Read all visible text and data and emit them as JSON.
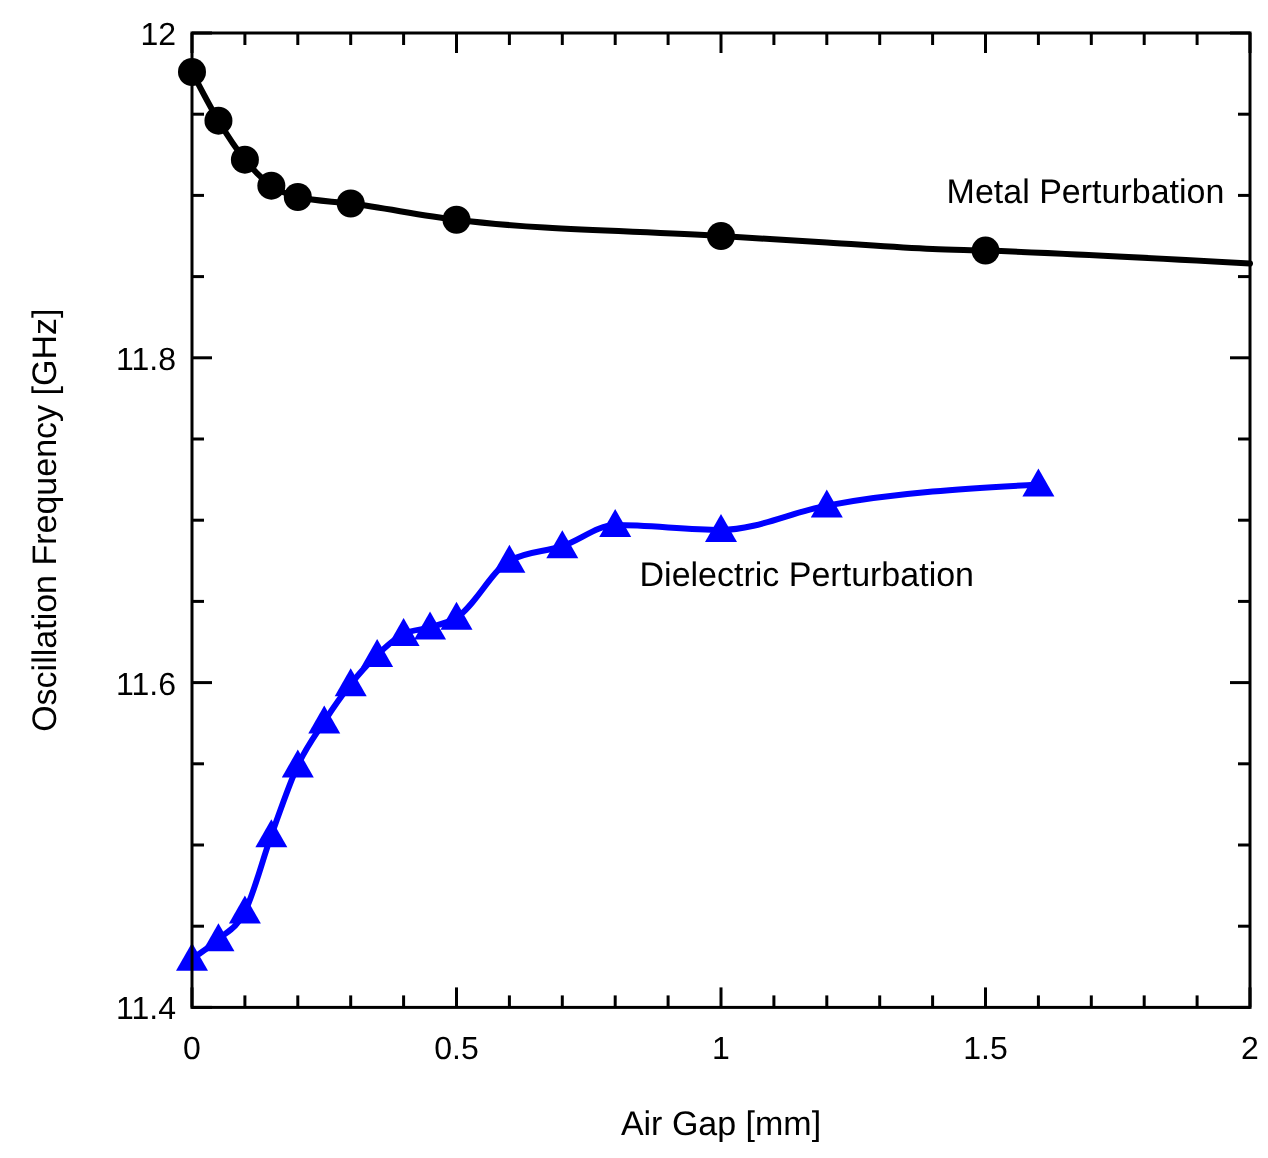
{
  "chart_data": {
    "type": "line",
    "xlabel": "Air Gap [mm]",
    "ylabel": "Oscillation Frequency [GHz]",
    "xlim": [
      0,
      2
    ],
    "ylim": [
      11.4,
      12
    ],
    "xticks": [
      0,
      {
        "value": 0.1,
        "label": null
      },
      {
        "value": 0.2,
        "label": null
      },
      {
        "value": 0.3,
        "label": null
      },
      {
        "value": 0.4,
        "label": null
      },
      0.5,
      {
        "value": 0.6,
        "label": null
      },
      {
        "value": 0.7,
        "label": null
      },
      {
        "value": 0.8,
        "label": null
      },
      {
        "value": 0.9,
        "label": null
      },
      1,
      {
        "value": 1.1,
        "label": null
      },
      {
        "value": 1.2,
        "label": null
      },
      {
        "value": 1.3,
        "label": null
      },
      {
        "value": 1.4,
        "label": null
      },
      1.5,
      {
        "value": 1.6,
        "label": null
      },
      {
        "value": 1.7,
        "label": null
      },
      {
        "value": 1.8,
        "label": null
      },
      {
        "value": 1.9,
        "label": null
      },
      2
    ],
    "yticks": [
      11.4,
      {
        "value": 11.45,
        "label": null
      },
      {
        "value": 11.5,
        "label": null
      },
      {
        "value": 11.55,
        "label": null
      },
      11.6,
      {
        "value": 11.65,
        "label": null
      },
      {
        "value": 11.7,
        "label": null
      },
      {
        "value": 11.75,
        "label": null
      },
      11.8,
      {
        "value": 11.85,
        "label": null
      },
      {
        "value": 11.9,
        "label": null
      },
      {
        "value": 11.95,
        "label": null
      },
      12
    ],
    "grid": false,
    "series": [
      {
        "name": "Metal Perturbation",
        "marker": "none",
        "color": "#000000",
        "x": [
          0,
          0.05,
          0.1,
          0.15,
          0.2,
          0.3,
          0.5,
          1.0,
          1.2,
          1.4,
          1.5,
          2.0
        ],
        "values": [
          11.976,
          11.946,
          11.922,
          11.906,
          11.899,
          11.895,
          11.885,
          11.875,
          11.871,
          11.867,
          11.866,
          11.858
        ]
      },
      {
        "type": "scatter",
        "marker": "circle",
        "color": "#000000",
        "x": [
          0,
          0.05,
          0.1,
          0.15,
          0.2,
          0.3,
          0.5,
          1.0,
          1.5
        ],
        "values": [
          11.976,
          11.946,
          11.922,
          11.906,
          11.899,
          11.895,
          11.885,
          11.875,
          11.866
        ]
      },
      {
        "name": "Dielectric Perturbation",
        "marker": "triangle",
        "color": "#0000ff",
        "x": [
          0,
          0.05,
          0.1,
          0.15,
          0.2,
          0.25,
          0.3,
          0.35,
          0.4,
          0.45,
          0.5,
          0.6,
          0.7,
          0.8,
          1.0,
          1.2,
          1.6
        ],
        "values": [
          11.43,
          11.442,
          11.459,
          11.506,
          11.549,
          11.576,
          11.599,
          11.617,
          11.63,
          11.634,
          11.64,
          11.675,
          11.684,
          11.697,
          11.694,
          11.709,
          11.722
        ]
      }
    ]
  }
}
